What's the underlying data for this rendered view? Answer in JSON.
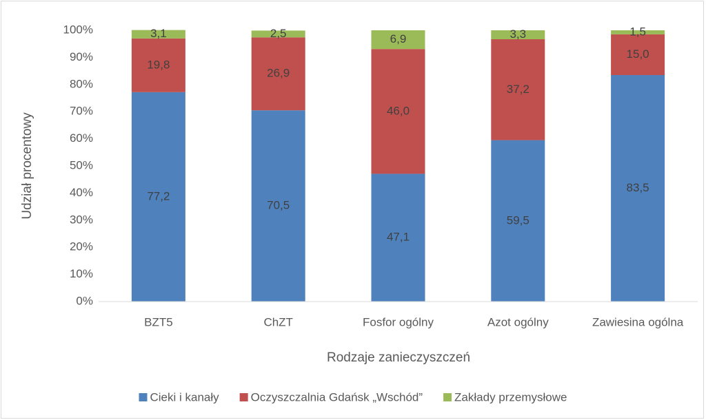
{
  "chart_data": {
    "type": "stacked_bar",
    "y_label": "Udział procentowy",
    "x_label": "Rodzaje zanieczyszczeń",
    "categories": [
      "BZT5",
      "ChZT",
      "Fosfor ogólny",
      "Azot ogólny",
      "Zawiesina ogólna"
    ],
    "series": [
      {
        "name": "Cieki i kanały",
        "color": "#4f81bd",
        "values": [
          77.2,
          70.5,
          47.1,
          59.5,
          83.5
        ],
        "value_labels": [
          "77,2",
          "70,5",
          "47,1",
          "59,5",
          "83,5"
        ]
      },
      {
        "name": "Oczyszczalnia Gdańsk „Wschód”",
        "color": "#c0504d",
        "values": [
          19.8,
          26.9,
          46.0,
          37.2,
          15.0
        ],
        "value_labels": [
          "19,8",
          "26,9",
          "46,0",
          "37,2",
          "15,0"
        ]
      },
      {
        "name": "Zakłady przemysłowe",
        "color": "#9bbb59",
        "values": [
          3.1,
          2.5,
          6.9,
          3.3,
          1.5
        ],
        "value_labels": [
          "3,1",
          "2,5",
          "6,9",
          "3,3",
          "1,5"
        ]
      }
    ],
    "ylim": [
      0,
      100
    ],
    "yticks": [
      {
        "value": 0,
        "label": "0%"
      },
      {
        "value": 10,
        "label": "10%"
      },
      {
        "value": 20,
        "label": "20%"
      },
      {
        "value": 30,
        "label": "30%"
      },
      {
        "value": 40,
        "label": "40%"
      },
      {
        "value": 50,
        "label": "50%"
      },
      {
        "value": 60,
        "label": "60%"
      },
      {
        "value": 70,
        "label": "70%"
      },
      {
        "value": 80,
        "label": "80%"
      },
      {
        "value": 90,
        "label": "90%"
      },
      {
        "value": 100,
        "label": "100%"
      }
    ],
    "grid": false,
    "legend": "bottom"
  }
}
